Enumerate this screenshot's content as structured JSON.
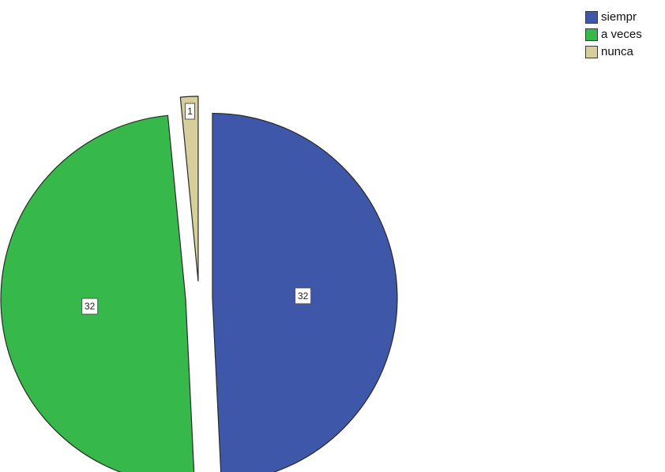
{
  "chart_data": {
    "type": "pie",
    "title": "",
    "categories": [
      "siempr",
      "a veces",
      "nunca"
    ],
    "values": [
      32,
      32,
      1
    ],
    "colors": [
      "#3f57a8",
      "#36b84a",
      "#d6cf9c"
    ],
    "data_labels": [
      "32",
      "32",
      "1"
    ],
    "exploded": true,
    "start_angle": "12 o'clock",
    "direction": "clockwise",
    "legend": "top-right"
  }
}
